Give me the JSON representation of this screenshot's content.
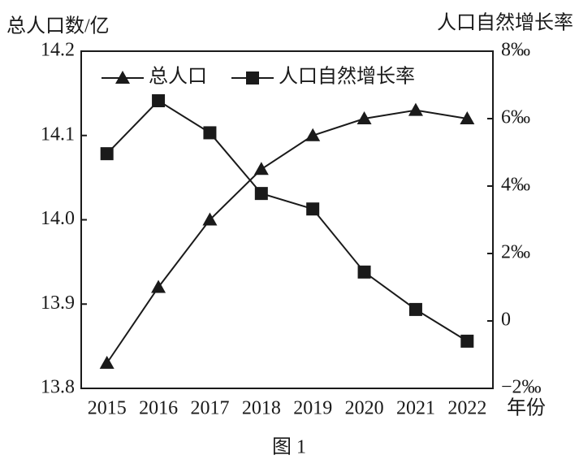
{
  "chart_data": {
    "type": "line",
    "y_label": "总人口数/亿",
    "y2_label": "人口自然增长率",
    "x_label": "年份",
    "caption": "图 1",
    "categories": [
      "2015",
      "2016",
      "2017",
      "2018",
      "2019",
      "2020",
      "2021",
      "2022"
    ],
    "series": [
      {
        "name": "总人口",
        "color": "#1a1a1a",
        "marker": "triangle",
        "axis": "y",
        "values": [
          13.83,
          13.92,
          14.0,
          14.06,
          14.1,
          14.12,
          14.13,
          14.12
        ]
      },
      {
        "name": "人口自然增长率",
        "color": "#1a1a1a",
        "marker": "square",
        "axis": "y2",
        "values": [
          4.96,
          6.53,
          5.58,
          3.78,
          3.32,
          1.45,
          0.34,
          -0.6
        ]
      }
    ],
    "ylim": [
      13.8,
      14.2
    ],
    "yticks": [
      13.8,
      13.9,
      {
        "value": 14,
        "label": "14.0"
      },
      14.1,
      14.2
    ],
    "y2lim": [
      -2,
      8
    ],
    "y2ticks": [
      {
        "value": -2,
        "label": "−2‰"
      },
      0,
      {
        "value": 2,
        "label": "2‰"
      },
      {
        "value": 4,
        "label": "4‰"
      },
      {
        "value": 6,
        "label": "6‰"
      },
      {
        "value": 8,
        "label": "8‰"
      }
    ],
    "grid": false,
    "legend": "top-left"
  }
}
